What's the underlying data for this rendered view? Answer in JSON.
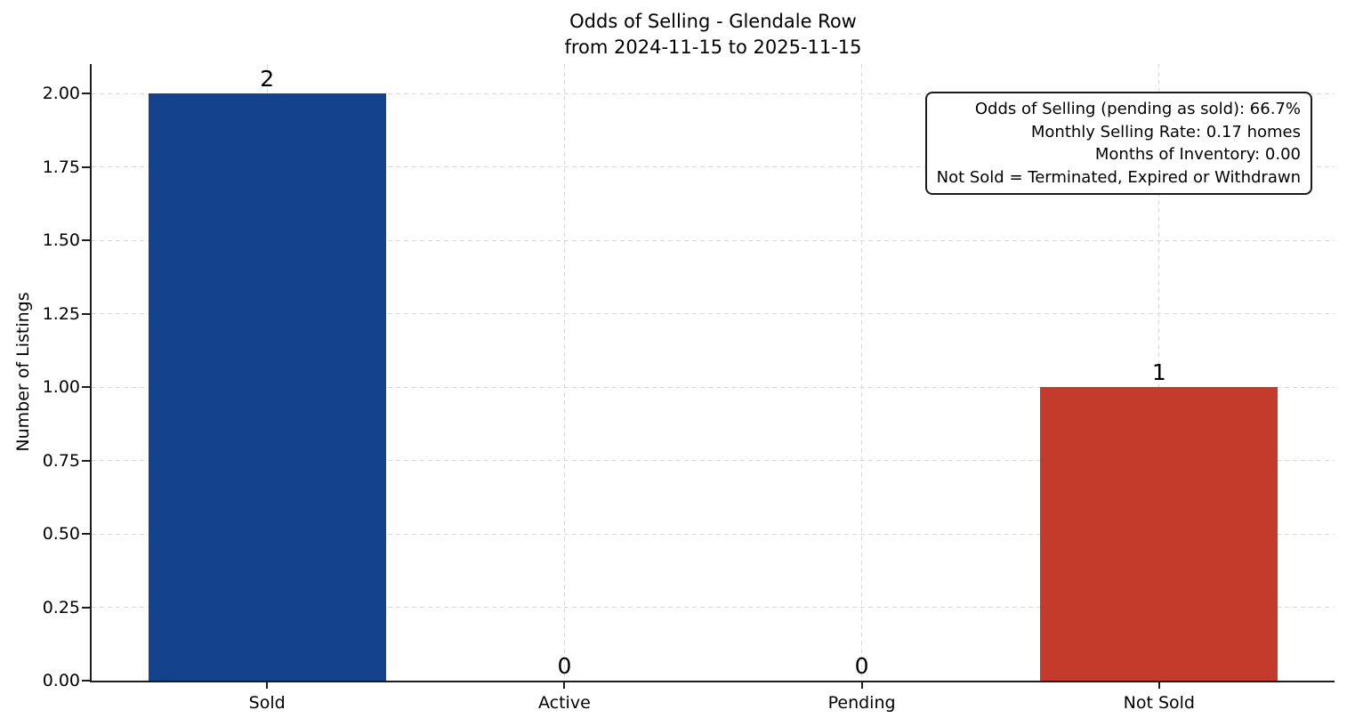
{
  "title": {
    "line1": "Odds of Selling - Glendale Row",
    "line2": "from 2024-11-15 to 2025-11-15"
  },
  "annotation": {
    "lines": [
      "Odds of Selling (pending as sold): 66.7%",
      "Monthly Selling Rate: 0.17 homes",
      "Months of Inventory: 0.00",
      "Not Sold = Terminated, Expired or Withdrawn"
    ]
  },
  "chart_data": {
    "type": "bar",
    "title": "Odds of Selling - Glendale Row\nfrom 2024-11-15 to 2025-11-15",
    "categories": [
      "Sold",
      "Active",
      "Pending",
      "Not Sold"
    ],
    "values": [
      2,
      0,
      0,
      1
    ],
    "value_labels": [
      "2",
      "0",
      "0",
      "1"
    ],
    "bar_colors": [
      "#14428c",
      "#14428c",
      "#14428c",
      "#c43b2c"
    ],
    "xlabel": "",
    "ylabel": "Number of Listings",
    "ylim": [
      0,
      2.1
    ],
    "xlim": [
      -0.59,
      3.59
    ],
    "bar_width": 0.8,
    "yticks": [
      0,
      0.25,
      0.5,
      0.75,
      1,
      1.25,
      1.5,
      1.75,
      2
    ],
    "ytick_labels": [
      "0.00",
      "0.25",
      "0.50",
      "0.75",
      "1.00",
      "1.25",
      "1.50",
      "1.75",
      "2.00"
    ],
    "grid": {
      "style": "dashed",
      "color": "#d9d9d9",
      "horizontal": true,
      "vertical": true
    },
    "axis_color": "#1c1c1c",
    "legend": null
  }
}
